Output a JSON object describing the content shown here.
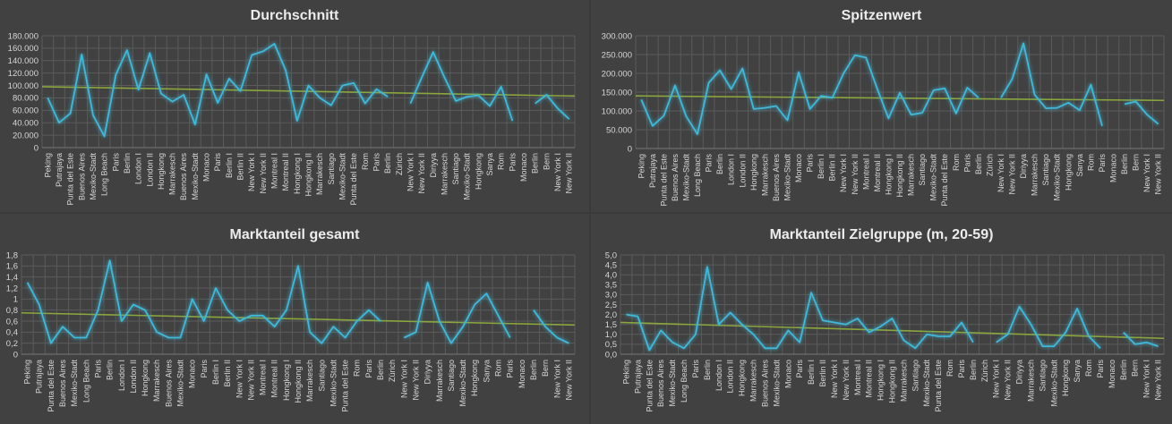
{
  "colors": {
    "background": "#414141",
    "series": "#3fb8d8",
    "trend": "#8aa63c",
    "grid": "#5b5b5b"
  },
  "chart_data": [
    {
      "type": "line",
      "title": "Durchschnitt",
      "ylim": [
        0,
        180000
      ],
      "yticks": [
        "0",
        "20.000",
        "40.000",
        "60.000",
        "80.000",
        "100.000",
        "120.000",
        "140.000",
        "160.000",
        "180.000"
      ],
      "grid": true,
      "categories": [
        "Peking",
        "Putrajaya",
        "Punta del Este",
        "Buenos Aires",
        "Mexiko-Stadt",
        "Long Beach",
        "Paris",
        "Berlin",
        "London I",
        "London II",
        "Hongkong",
        "Marrakesch",
        "Buenos Aires",
        "Mexiko-Stadt",
        "Monaco",
        "Paris",
        "Berlin I",
        "Berlin II",
        "New York I",
        "New York II",
        "Montreal I",
        "Montreal II",
        "Hongkong I",
        "Hongkong II",
        "Marrakesch",
        "Santiago",
        "Mexiko-Stadt",
        "Punta del Este",
        "Rom",
        "Paris",
        "Berlin",
        "Zürich",
        "New York I",
        "New York II",
        "Diriyya",
        "Marrakesch",
        "Santiago",
        "Mexiko-Stadt",
        "Hongkong",
        "Sanya",
        "Rom",
        "Paris",
        "Monaco",
        "Berlin",
        "Bern",
        "New York I",
        "New York II"
      ],
      "series": [
        {
          "values": [
            80000,
            40000,
            55000,
            150000,
            52000,
            18000,
            117000,
            157000,
            93000,
            152000,
            87000,
            74000,
            85000,
            37000,
            118000,
            72000,
            111000,
            91000,
            149000,
            155000,
            167000,
            124000,
            43000,
            100000,
            80000,
            68000,
            100000,
            104000,
            71000,
            94000,
            82000,
            null,
            71000,
            113000,
            154000,
            113000,
            75000,
            82000,
            84000,
            67000,
            98000,
            43000,
            null,
            71000,
            85000,
            63000,
            46000
          ]
        }
      ],
      "trend": [
        98000,
        83000
      ]
    },
    {
      "type": "line",
      "title": "Spitzenwert",
      "ylim": [
        0,
        300000
      ],
      "yticks": [
        "0",
        "50.000",
        "100.000",
        "150.000",
        "200.000",
        "250.000",
        "300.000"
      ],
      "grid": true,
      "categories": [
        "Peking",
        "Putrajaya",
        "Punta del Este",
        "Buenos Aires",
        "Mexiko-Stadt",
        "Long Beach",
        "Paris",
        "Berlin",
        "London I",
        "London II",
        "Hongkong",
        "Marrakesch",
        "Buenos Aires",
        "Mexiko-Stadt",
        "Monaco",
        "Paris",
        "Berlin I",
        "Berlin II",
        "New York I",
        "New York II",
        "Montreal I",
        "Montreal II",
        "Hongkong I",
        "Hongkong II",
        "Marrakesch",
        "Santiago",
        "Mexiko-Stadt",
        "Punta del Este",
        "Rom",
        "Paris",
        "Berlin",
        "Zürich",
        "New York I",
        "New York II",
        "Diriyya",
        "Marrakesch",
        "Santiago",
        "Mexiko-Stadt",
        "Hongkong",
        "Sanya",
        "Rom",
        "Paris",
        "Monaco",
        "Berlin",
        "Bern",
        "New York I",
        "New York II"
      ],
      "series": [
        {
          "values": [
            130000,
            60000,
            87000,
            168000,
            85000,
            38000,
            175000,
            208000,
            158000,
            213000,
            105000,
            108000,
            113000,
            75000,
            203000,
            105000,
            140000,
            135000,
            200000,
            248000,
            242000,
            158000,
            80000,
            148000,
            90000,
            95000,
            155000,
            160000,
            93000,
            162000,
            135000,
            null,
            135000,
            185000,
            280000,
            143000,
            107000,
            108000,
            122000,
            102000,
            170000,
            60000,
            null,
            118000,
            125000,
            90000,
            65000
          ]
        }
      ],
      "trend": [
        140000,
        128000
      ]
    },
    {
      "type": "line",
      "title": "Marktanteil gesamt",
      "ylim": [
        0,
        1.8
      ],
      "yticks": [
        "0",
        "0,2",
        "0,4",
        "0,6",
        "0,8",
        "1",
        "1,2",
        "1,4",
        "1,6",
        "1,8"
      ],
      "grid": true,
      "categories": [
        "Peking",
        "Putrajaya",
        "Punta del Este",
        "Buenos Aires",
        "Mexiko-Stadt",
        "Long Beach",
        "Paris",
        "Berlin",
        "London I",
        "London II",
        "Hongkong",
        "Marrakesch",
        "Buenos Aires",
        "Mexiko-Stadt",
        "Monaco",
        "Paris",
        "Berlin I",
        "Berlin II",
        "New York I",
        "New York II",
        "Montreal I",
        "Montreal II",
        "Hongkong I",
        "Hongkong II",
        "Marrakesch",
        "Santiago",
        "Mexiko-Stadt",
        "Punta del Este",
        "Rom",
        "Paris",
        "Berlin",
        "Zürich",
        "New York I",
        "New York II",
        "Diriyya",
        "Marrakesch",
        "Santiago",
        "Mexiko-Stadt",
        "Hongkong",
        "Sanya",
        "Rom",
        "Paris",
        "Monaco",
        "Berlin",
        "Bern",
        "New York I",
        "New York II"
      ],
      "series": [
        {
          "values": [
            1.3,
            0.9,
            0.2,
            0.5,
            0.3,
            0.3,
            0.8,
            1.7,
            0.6,
            0.9,
            0.8,
            0.4,
            0.3,
            0.3,
            1.0,
            0.6,
            1.2,
            0.8,
            0.6,
            0.7,
            0.7,
            0.5,
            0.8,
            1.6,
            0.4,
            0.2,
            0.5,
            0.3,
            0.6,
            0.8,
            0.6,
            null,
            0.3,
            0.4,
            1.3,
            0.6,
            0.2,
            0.5,
            0.9,
            1.1,
            0.7,
            0.3,
            null,
            0.8,
            0.5,
            0.3,
            0.2
          ]
        }
      ],
      "trend": [
        0.75,
        0.53
      ]
    },
    {
      "type": "line",
      "title": "Marktanteil Zielgruppe (m, 20-59)",
      "ylim": [
        0,
        5.0
      ],
      "yticks": [
        "0,0",
        "0,5",
        "1,0",
        "1,5",
        "2,0",
        "2,5",
        "3,0",
        "3,5",
        "4,0",
        "4,5",
        "5,0"
      ],
      "grid": true,
      "categories": [
        "Peking",
        "Putrajaya",
        "Punta del Este",
        "Buenos Aires",
        "Mexiko-Stadt",
        "Long Beach",
        "Paris",
        "Berlin",
        "London I",
        "London II",
        "Hongkong",
        "Marrakesch",
        "Buenos Aires",
        "Mexiko-Stadt",
        "Monaco",
        "Paris",
        "Berlin I",
        "Berlin II",
        "New York I",
        "New York II",
        "Montreal I",
        "Montreal II",
        "Hongkong I",
        "Hongkong II",
        "Marrakesch",
        "Santiago",
        "Mexiko-Stadt",
        "Punta del Este",
        "Rom",
        "Paris",
        "Berlin",
        "Zürich",
        "New York I",
        "New York II",
        "Diriyya",
        "Marrakesch",
        "Santiago",
        "Mexiko-Stadt",
        "Hongkong",
        "Sanya",
        "Rom",
        "Paris",
        "Monaco",
        "Berlin",
        "Bern",
        "New York I",
        "New York II"
      ],
      "series": [
        {
          "values": [
            2.0,
            1.9,
            0.2,
            1.2,
            0.6,
            0.3,
            1.0,
            4.4,
            1.5,
            2.1,
            1.5,
            1.0,
            0.3,
            0.3,
            1.2,
            0.6,
            3.1,
            1.7,
            1.6,
            1.5,
            1.8,
            1.1,
            1.4,
            1.8,
            0.7,
            0.3,
            1.0,
            0.9,
            0.9,
            1.6,
            0.6,
            null,
            0.6,
            1.0,
            2.4,
            1.5,
            0.4,
            0.4,
            1.1,
            2.3,
            0.9,
            0.3,
            null,
            1.1,
            0.5,
            0.6,
            0.4
          ]
        }
      ],
      "trend": [
        1.6,
        0.8
      ]
    }
  ]
}
